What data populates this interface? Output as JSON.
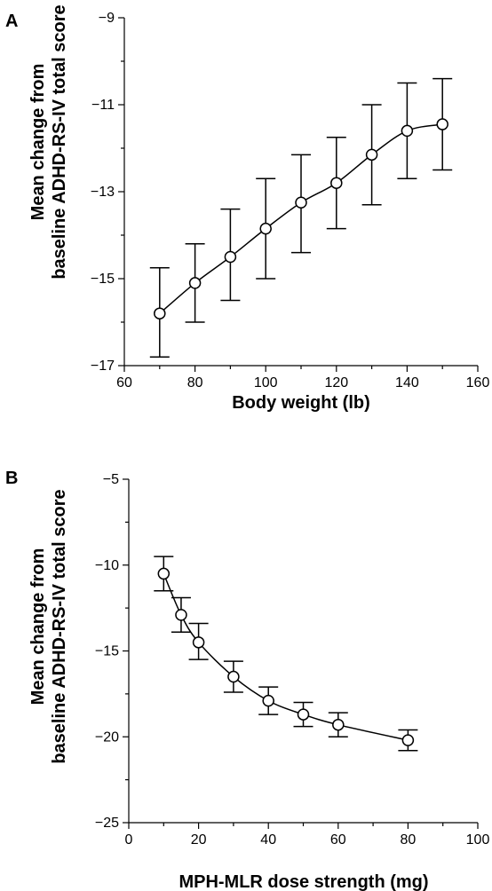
{
  "chart_data": [
    {
      "type": "line",
      "panel_label": "A",
      "xlabel": "Body weight (lb)",
      "ylabel_lines": [
        "Mean change from",
        "baseline ADHD-RS-IV total score"
      ],
      "xlim": [
        60,
        160
      ],
      "ylim": [
        -17,
        -9
      ],
      "xticks": [
        60,
        80,
        100,
        120,
        140,
        160
      ],
      "yticks": [
        -17,
        -15,
        -13,
        -11,
        -9
      ],
      "grid": false,
      "x": [
        70,
        80,
        90,
        100,
        110,
        120,
        130,
        140,
        150
      ],
      "y": [
        -15.8,
        -15.1,
        -14.5,
        -13.85,
        -13.25,
        -12.8,
        -12.15,
        -11.6,
        -11.45
      ],
      "err_low": [
        -16.8,
        -16.0,
        -15.5,
        -15.0,
        -14.4,
        -13.85,
        -13.3,
        -12.7,
        -12.5
      ],
      "err_high": [
        -14.75,
        -14.2,
        -13.4,
        -12.7,
        -12.15,
        -11.75,
        -11.0,
        -10.5,
        -10.4
      ]
    },
    {
      "type": "line",
      "panel_label": "B",
      "xlabel": "MPH-MLR dose strength (mg)",
      "ylabel_lines": [
        "Mean change from",
        "baseline ADHD-RS-IV total score"
      ],
      "xlim": [
        0,
        100
      ],
      "ylim": [
        -25,
        -5
      ],
      "xticks": [
        0,
        20,
        40,
        60,
        80,
        100
      ],
      "yticks": [
        -25,
        -20,
        -15,
        -10,
        -5
      ],
      "grid": false,
      "x": [
        10,
        15,
        20,
        30,
        40,
        50,
        60,
        80
      ],
      "y": [
        -10.5,
        -12.9,
        -14.5,
        -16.5,
        -17.9,
        -18.7,
        -19.3,
        -20.2
      ],
      "err_low": [
        -11.5,
        -13.9,
        -15.5,
        -17.4,
        -18.7,
        -19.4,
        -20.0,
        -20.8
      ],
      "err_high": [
        -9.5,
        -11.9,
        -13.4,
        -15.6,
        -17.1,
        -18.0,
        -18.6,
        -19.6
      ]
    }
  ]
}
